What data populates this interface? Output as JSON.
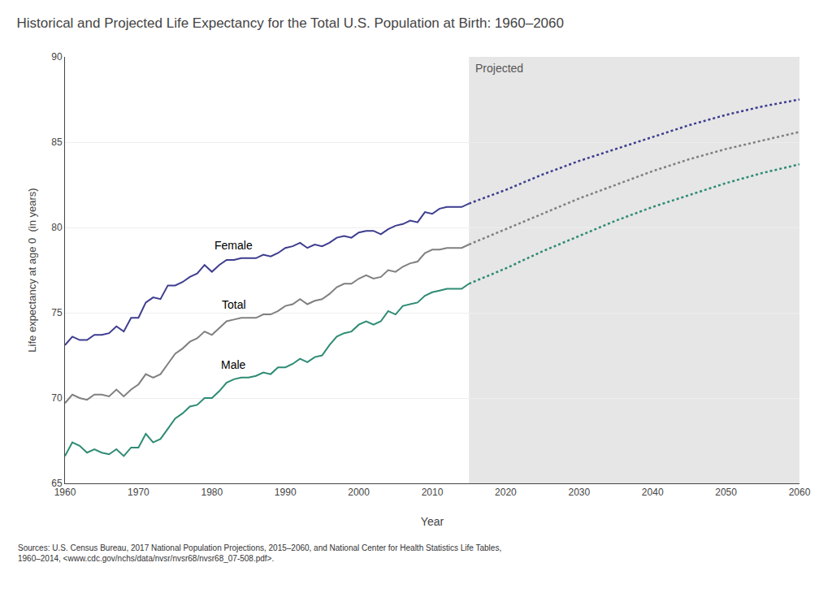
{
  "chart_data": {
    "type": "line",
    "title": "Historical and Projected Life Expectancy for the Total U.S. Population at Birth: 1960–2060",
    "xlabel": "Year",
    "ylabel": "Life expectancy at age 0  (in years)",
    "source": "Sources: U.S. Census Bureau, 2017 National Population Projections, 2015–2060, and National Center for Health Statistics Life Tables,\n1960–2014, <www.cdc.gov/nchs/data/nvsr/nvsr68/nvsr68_07-508.pdf>.",
    "projection_label": "Projected",
    "projection_start": 2015,
    "x": [
      1960,
      1961,
      1962,
      1963,
      1964,
      1965,
      1966,
      1967,
      1968,
      1969,
      1970,
      1971,
      1972,
      1973,
      1974,
      1975,
      1976,
      1977,
      1978,
      1979,
      1980,
      1981,
      1982,
      1983,
      1984,
      1985,
      1986,
      1987,
      1988,
      1989,
      1990,
      1991,
      1992,
      1993,
      1994,
      1995,
      1996,
      1997,
      1998,
      1999,
      2000,
      2001,
      2002,
      2003,
      2004,
      2005,
      2006,
      2007,
      2008,
      2009,
      2010,
      2011,
      2012,
      2013,
      2014,
      2015,
      2020,
      2025,
      2030,
      2035,
      2040,
      2045,
      2050,
      2055,
      2060
    ],
    "series": [
      {
        "name": "Female",
        "color": "#3d3d8f",
        "values": [
          73.1,
          73.6,
          73.4,
          73.4,
          73.7,
          73.7,
          73.8,
          74.2,
          73.9,
          74.7,
          74.7,
          75.6,
          75.9,
          75.8,
          76.6,
          76.6,
          76.8,
          77.1,
          77.3,
          77.8,
          77.4,
          77.8,
          78.1,
          78.1,
          78.2,
          78.2,
          78.2,
          78.4,
          78.3,
          78.5,
          78.8,
          78.9,
          79.1,
          78.8,
          79.0,
          78.9,
          79.1,
          79.4,
          79.5,
          79.4,
          79.7,
          79.8,
          79.8,
          79.6,
          79.9,
          80.1,
          80.2,
          80.4,
          80.3,
          80.9,
          80.8,
          81.1,
          81.2,
          81.2,
          81.2,
          81.4,
          82.2,
          83.1,
          83.9,
          84.6,
          85.3,
          86.0,
          86.6,
          87.1,
          87.5
        ]
      },
      {
        "name": "Total",
        "color": "#808080",
        "values": [
          69.7,
          70.2,
          70.0,
          69.9,
          70.2,
          70.2,
          70.1,
          70.5,
          70.1,
          70.5,
          70.8,
          71.4,
          71.2,
          71.4,
          72.0,
          72.6,
          72.9,
          73.3,
          73.5,
          73.9,
          73.7,
          74.1,
          74.5,
          74.6,
          74.7,
          74.7,
          74.7,
          74.9,
          74.9,
          75.1,
          75.4,
          75.5,
          75.8,
          75.5,
          75.7,
          75.8,
          76.1,
          76.5,
          76.7,
          76.7,
          77.0,
          77.2,
          77.0,
          77.1,
          77.5,
          77.4,
          77.7,
          77.9,
          78.0,
          78.5,
          78.7,
          78.7,
          78.8,
          78.8,
          78.8,
          79.0,
          79.9,
          80.8,
          81.7,
          82.5,
          83.3,
          84.0,
          84.6,
          85.1,
          85.6
        ]
      },
      {
        "name": "Male",
        "color": "#2e8b74",
        "values": [
          66.6,
          67.4,
          67.2,
          66.8,
          67.0,
          66.8,
          66.7,
          67.0,
          66.6,
          67.1,
          67.1,
          67.9,
          67.4,
          67.6,
          68.2,
          68.8,
          69.1,
          69.5,
          69.6,
          70.0,
          70.0,
          70.4,
          70.9,
          71.1,
          71.2,
          71.2,
          71.3,
          71.5,
          71.4,
          71.8,
          71.8,
          72.0,
          72.3,
          72.1,
          72.4,
          72.5,
          73.1,
          73.6,
          73.8,
          73.9,
          74.3,
          74.5,
          74.3,
          74.5,
          75.1,
          74.9,
          75.4,
          75.5,
          75.6,
          76.0,
          76.2,
          76.3,
          76.4,
          76.4,
          76.4,
          76.7,
          77.6,
          78.6,
          79.5,
          80.4,
          81.2,
          81.9,
          82.6,
          83.2,
          83.7
        ]
      }
    ],
    "xlim": [
      1960,
      2060
    ],
    "ylim": [
      65,
      90
    ],
    "xticks": [
      1960,
      1970,
      1980,
      1990,
      2000,
      2010,
      2020,
      2030,
      2040,
      2050,
      2060
    ],
    "yticks": [
      65,
      70,
      75,
      80,
      85,
      90
    ],
    "grid": "y"
  }
}
